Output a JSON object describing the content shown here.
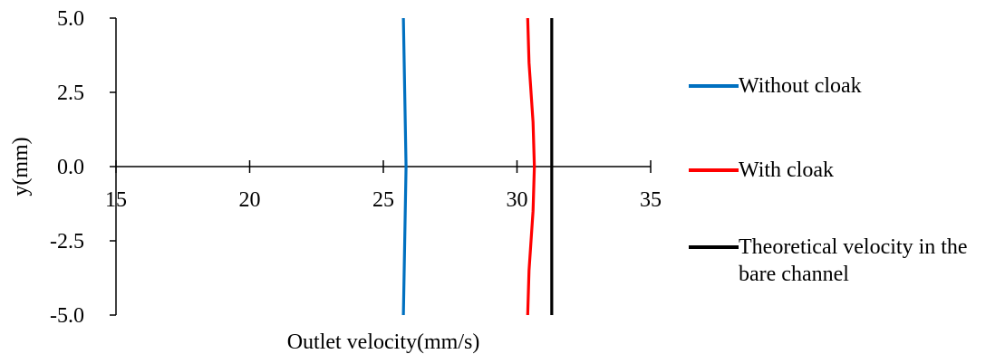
{
  "chart_data": {
    "type": "line",
    "orientation": "vertical-profile",
    "xlabel": "Outlet velocity(mm/s)",
    "ylabel": "y(mm)",
    "xlim": [
      15,
      35
    ],
    "ylim": [
      -5.0,
      5.0
    ],
    "x_ticks": [
      "15",
      "20",
      "25",
      "30",
      "35"
    ],
    "y_ticks": [
      "5.0",
      "2.5",
      "0.0",
      "-2.5",
      "-5.0"
    ],
    "legend_position": "right",
    "grid": false,
    "series": [
      {
        "name": "Without cloak",
        "color": "#0070C0",
        "points": [
          [
            25.75,
            -5.0
          ],
          [
            25.8,
            -2.5
          ],
          [
            25.85,
            0.0
          ],
          [
            25.8,
            2.5
          ],
          [
            25.75,
            5.0
          ]
        ]
      },
      {
        "name": "With cloak",
        "color": "#FF0000",
        "points": [
          [
            30.4,
            -5.0
          ],
          [
            30.45,
            -3.5
          ],
          [
            30.6,
            -1.5
          ],
          [
            30.65,
            0.0
          ],
          [
            30.6,
            1.5
          ],
          [
            30.45,
            3.5
          ],
          [
            30.4,
            5.0
          ]
        ]
      },
      {
        "name": "Theoretical velocity in the bare channel",
        "color": "#000000",
        "points": [
          [
            31.3,
            -5.0
          ],
          [
            31.3,
            5.0
          ]
        ]
      }
    ]
  }
}
